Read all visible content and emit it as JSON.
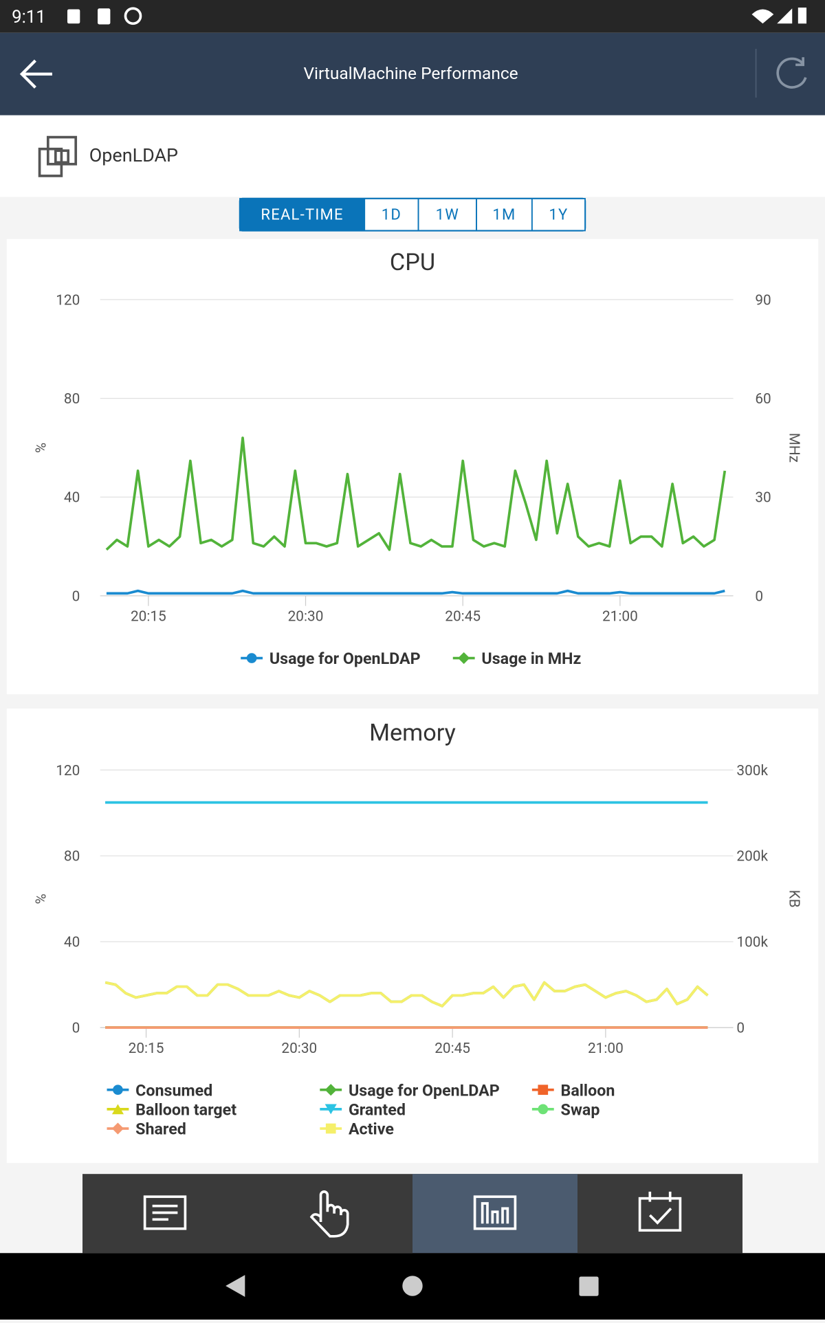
{
  "status_bar": {
    "time": "9:11"
  },
  "app_bar": {
    "title": "VirtualMachine Performance"
  },
  "vm": {
    "name": "OpenLDAP"
  },
  "tabs": [
    "REAL-TIME",
    "1D",
    "1W",
    "1M",
    "1Y"
  ],
  "chart_data": [
    {
      "type": "line",
      "title": "CPU",
      "y_label": "%",
      "y2_label": "MHz",
      "x": [
        1211,
        1212,
        1213,
        1214,
        1215,
        1216,
        1217,
        1218,
        1219,
        1220,
        1221,
        1222,
        1223,
        1224,
        1225,
        1226,
        1227,
        1228,
        1229,
        1230,
        1231,
        1232,
        1233,
        1234,
        1235,
        1236,
        1237,
        1238,
        1239,
        1240,
        1241,
        1242,
        1243,
        1244,
        1245,
        1246,
        1247,
        1248,
        1249,
        1250,
        1251,
        1252,
        1253,
        1254,
        1255,
        1256,
        1257,
        1258,
        1259,
        1260,
        1261,
        1262,
        1263,
        1264,
        1265,
        1266,
        1267,
        1268,
        1269,
        1270
      ],
      "xlim": [
        1210.4,
        1270.8
      ],
      "xticks": [
        {
          "value": 1215,
          "label": "20:15"
        },
        {
          "value": 1230,
          "label": "20:30"
        },
        {
          "value": 1245,
          "label": "20:45"
        },
        {
          "value": 1260,
          "label": "21:00"
        }
      ],
      "ylim": [
        0,
        120
      ],
      "yticks": [
        0,
        40,
        80,
        120
      ],
      "y2lim": [
        0,
        90
      ],
      "y2ticks": [
        0,
        30,
        60,
        90
      ],
      "grid": true,
      "series": [
        {
          "name": "Usage for OpenLDAP",
          "color": "#1a8bd0",
          "marker": "circle",
          "values": [
            1,
            1,
            1,
            2,
            1,
            1,
            1,
            1,
            1,
            1,
            1,
            1,
            1,
            2,
            1,
            1,
            1,
            1,
            1,
            1,
            1,
            1,
            1,
            1,
            1,
            1,
            1,
            1,
            1,
            1,
            1,
            1,
            1,
            1.5,
            1,
            1,
            1,
            1,
            1,
            1,
            1,
            1,
            1,
            1,
            2,
            1,
            1,
            1,
            1,
            1.5,
            1,
            1,
            1,
            1,
            1,
            1,
            1,
            1,
            1,
            2
          ]
        },
        {
          "name": "Usage in MHz",
          "color": "#52b33a",
          "marker": "diamond",
          "axis": "y2",
          "values": [
            14,
            17,
            15,
            38,
            15,
            17,
            15,
            18,
            41,
            16,
            17,
            15,
            17,
            48,
            16,
            15,
            18,
            15,
            38,
            16,
            16,
            15,
            16,
            37,
            15,
            17,
            19,
            14,
            37,
            16,
            15,
            17,
            15,
            15,
            41,
            17,
            15,
            16,
            15,
            38,
            28,
            17,
            41,
            19,
            34,
            18,
            15,
            16,
            15,
            35,
            16,
            18,
            18,
            15,
            34,
            16,
            18,
            15,
            17,
            38
          ]
        }
      ]
    },
    {
      "type": "line",
      "title": "Memory",
      "y_label": "%",
      "y2_label": "KB",
      "x": [
        1211,
        1212,
        1213,
        1214,
        1215,
        1216,
        1217,
        1218,
        1219,
        1220,
        1221,
        1222,
        1223,
        1224,
        1225,
        1226,
        1227,
        1228,
        1229,
        1230,
        1231,
        1232,
        1233,
        1234,
        1235,
        1236,
        1237,
        1238,
        1239,
        1240,
        1241,
        1242,
        1243,
        1244,
        1245,
        1246,
        1247,
        1248,
        1249,
        1250,
        1251,
        1252,
        1253,
        1254,
        1255,
        1256,
        1257,
        1258,
        1259,
        1260,
        1261,
        1262,
        1263,
        1264,
        1265,
        1266,
        1267,
        1268,
        1269,
        1270
      ],
      "xlim": [
        1210.5,
        1272.5
      ],
      "xticks": [
        {
          "value": 1215,
          "label": "20:15"
        },
        {
          "value": 1230,
          "label": "20:30"
        },
        {
          "value": 1245,
          "label": "20:45"
        },
        {
          "value": 1260,
          "label": "21:00"
        }
      ],
      "ylim": [
        0,
        120
      ],
      "yticks": [
        0,
        40,
        80,
        120
      ],
      "y2lim": [
        0,
        300000
      ],
      "y2ticks": [
        0,
        {
          "value": 100000,
          "label": "100k"
        },
        {
          "value": 200000,
          "label": "200k"
        },
        {
          "value": 300000,
          "label": "300k"
        }
      ],
      "grid": true,
      "series": [
        {
          "name": "Consumed",
          "color": "#1a8bd0",
          "marker": "circle",
          "axis": "y2",
          "values": [
            262144,
            262144,
            262144,
            262144,
            262144,
            262144,
            262144,
            262144,
            262144,
            262144,
            262144,
            262144,
            262144,
            262144,
            262144,
            262144,
            262144,
            262144,
            262144,
            262144,
            262144,
            262144,
            262144,
            262144,
            262144,
            262144,
            262144,
            262144,
            262144,
            262144,
            262144,
            262144,
            262144,
            262144,
            262144,
            262144,
            262144,
            262144,
            262144,
            262144,
            262144,
            262144,
            262144,
            262144,
            262144,
            262144,
            262144,
            262144,
            262144,
            262144,
            262144,
            262144,
            262144,
            262144,
            262144,
            262144,
            262144,
            262144,
            262144,
            262144
          ]
        },
        {
          "name": "Usage for OpenLDAP",
          "color": "#52b33a",
          "marker": "diamond",
          "values": [
            21,
            20,
            16,
            14,
            15,
            16,
            16,
            19,
            19,
            15,
            15,
            20,
            20,
            18,
            15,
            15,
            15,
            17,
            15,
            14,
            17,
            15,
            12,
            15,
            15,
            15,
            16,
            16,
            12,
            12,
            15,
            15,
            12,
            10,
            15,
            15,
            16,
            16,
            19,
            14,
            19,
            20,
            13,
            21,
            17,
            17,
            19,
            20,
            17,
            14,
            16,
            17,
            15,
            12,
            13,
            18,
            11,
            13,
            19,
            15
          ]
        },
        {
          "name": "Balloon",
          "color": "#f0642a",
          "marker": "square",
          "axis": "y2",
          "values": [
            0,
            0,
            0,
            0,
            0,
            0,
            0,
            0,
            0,
            0,
            0,
            0,
            0,
            0,
            0,
            0,
            0,
            0,
            0,
            0,
            0,
            0,
            0,
            0,
            0,
            0,
            0,
            0,
            0,
            0,
            0,
            0,
            0,
            0,
            0,
            0,
            0,
            0,
            0,
            0,
            0,
            0,
            0,
            0,
            0,
            0,
            0,
            0,
            0,
            0,
            0,
            0,
            0,
            0,
            0,
            0,
            0,
            0,
            0,
            0
          ]
        },
        {
          "name": "Balloon target",
          "color": "#d9d91c",
          "marker": "triangle",
          "axis": "y2",
          "values": [
            0,
            0,
            0,
            0,
            0,
            0,
            0,
            0,
            0,
            0,
            0,
            0,
            0,
            0,
            0,
            0,
            0,
            0,
            0,
            0,
            0,
            0,
            0,
            0,
            0,
            0,
            0,
            0,
            0,
            0,
            0,
            0,
            0,
            0,
            0,
            0,
            0,
            0,
            0,
            0,
            0,
            0,
            0,
            0,
            0,
            0,
            0,
            0,
            0,
            0,
            0,
            0,
            0,
            0,
            0,
            0,
            0,
            0,
            0,
            0
          ]
        },
        {
          "name": "Granted",
          "color": "#2cc3e3",
          "marker": "triangle-down",
          "axis": "y2",
          "values": [
            262144,
            262144,
            262144,
            262144,
            262144,
            262144,
            262144,
            262144,
            262144,
            262144,
            262144,
            262144,
            262144,
            262144,
            262144,
            262144,
            262144,
            262144,
            262144,
            262144,
            262144,
            262144,
            262144,
            262144,
            262144,
            262144,
            262144,
            262144,
            262144,
            262144,
            262144,
            262144,
            262144,
            262144,
            262144,
            262144,
            262144,
            262144,
            262144,
            262144,
            262144,
            262144,
            262144,
            262144,
            262144,
            262144,
            262144,
            262144,
            262144,
            262144,
            262144,
            262144,
            262144,
            262144,
            262144,
            262144,
            262144,
            262144,
            262144,
            262144
          ]
        },
        {
          "name": "Swap",
          "color": "#6ee276",
          "marker": "circle",
          "axis": "y2",
          "values": [
            0,
            0,
            0,
            0,
            0,
            0,
            0,
            0,
            0,
            0,
            0,
            0,
            0,
            0,
            0,
            0,
            0,
            0,
            0,
            0,
            0,
            0,
            0,
            0,
            0,
            0,
            0,
            0,
            0,
            0,
            0,
            0,
            0,
            0,
            0,
            0,
            0,
            0,
            0,
            0,
            0,
            0,
            0,
            0,
            0,
            0,
            0,
            0,
            0,
            0,
            0,
            0,
            0,
            0,
            0,
            0,
            0,
            0,
            0,
            0
          ]
        },
        {
          "name": "Shared",
          "color": "#f59a72",
          "marker": "diamond",
          "axis": "y2",
          "values": [
            0,
            0,
            0,
            0,
            0,
            0,
            0,
            0,
            0,
            0,
            0,
            0,
            0,
            0,
            0,
            0,
            0,
            0,
            0,
            0,
            0,
            0,
            0,
            0,
            0,
            0,
            0,
            0,
            0,
            0,
            0,
            0,
            0,
            0,
            0,
            0,
            0,
            0,
            0,
            0,
            0,
            0,
            0,
            0,
            0,
            0,
            0,
            0,
            0,
            0,
            0,
            0,
            0,
            0,
            0,
            0,
            0,
            0,
            0,
            0
          ]
        },
        {
          "name": "Active",
          "color": "#f5ef6a",
          "marker": "square",
          "axis": "y2",
          "values": [
            52500,
            50000,
            40000,
            35000,
            37500,
            40000,
            40000,
            47500,
            47500,
            37500,
            37500,
            50000,
            50000,
            45000,
            37500,
            37500,
            37500,
            42500,
            37500,
            35000,
            42500,
            37500,
            30000,
            37500,
            37500,
            37500,
            40000,
            40000,
            30000,
            30000,
            37500,
            37500,
            30000,
            25000,
            37500,
            37500,
            40000,
            40000,
            47500,
            35000,
            47500,
            50000,
            32500,
            52500,
            42500,
            42500,
            47500,
            50000,
            42500,
            35000,
            40000,
            42500,
            37500,
            30000,
            32500,
            45000,
            27500,
            32500,
            47500,
            37500
          ]
        }
      ]
    }
  ]
}
